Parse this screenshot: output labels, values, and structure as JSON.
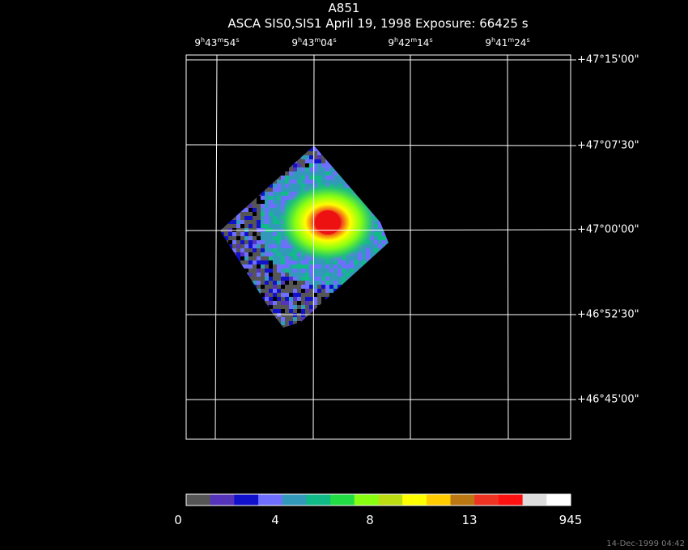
{
  "title": "A851",
  "subtitle": "ASCA SIS0,SIS1 April 19, 1998 Exposure: 66425 s",
  "ra_labels": [
    {
      "h": "9",
      "m": "43",
      "s": "54"
    },
    {
      "h": "9",
      "m": "43",
      "s": "04"
    },
    {
      "h": "9",
      "m": "42",
      "s": "14"
    },
    {
      "h": "9",
      "m": "41",
      "s": "24"
    }
  ],
  "dec_labels": [
    "+47°15'00\"",
    "+47°07'30\"",
    "+47°00'00\"",
    "+46°52'30\"",
    "+46°45'00\""
  ],
  "colorbar": {
    "colors": [
      "#555555",
      "#5533bb",
      "#1111cc",
      "#6f6fff",
      "#3399bb",
      "#11bb88",
      "#22dd44",
      "#88ff11",
      "#bbdd11",
      "#ffff00",
      "#ffcc00",
      "#bb7711",
      "#ee3322",
      "#ff1111",
      "#dddddd",
      "#ffffff"
    ],
    "tick_labels": [
      "0",
      "4",
      "8",
      "13",
      "945"
    ]
  },
  "footer": "14-Dec-1999 04:42"
}
